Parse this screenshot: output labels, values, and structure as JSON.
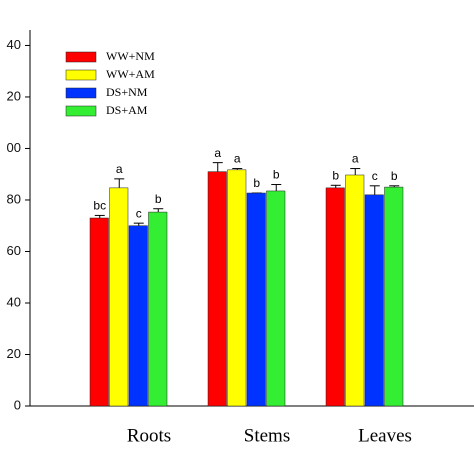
{
  "chart_data": {
    "type": "bar",
    "categories": [
      "Roots",
      "Stems",
      "Leaves"
    ],
    "series": [
      {
        "name": "WW+NM",
        "color": "#ff0000",
        "values": [
          73,
          91,
          84.7
        ],
        "errors": [
          1,
          3.5,
          1
        ],
        "letters": [
          "bc",
          "a",
          "b"
        ]
      },
      {
        "name": "WW+AM",
        "color": "#ffff00",
        "values": [
          84.7,
          91.7,
          89.7
        ],
        "errors": [
          3.5,
          0.5,
          2.5
        ],
        "letters": [
          "a",
          "a",
          "a"
        ]
      },
      {
        "name": "DS+NM",
        "color": "#0033ff",
        "values": [
          70,
          82.7,
          82
        ],
        "errors": [
          1,
          0,
          3.5
        ],
        "letters": [
          "c",
          "b",
          "c"
        ]
      },
      {
        "name": "DS+AM",
        "color": "#33ee33",
        "values": [
          75.3,
          83.5,
          85
        ],
        "errors": [
          1.3,
          2.5,
          0.5
        ],
        "letters": [
          "b",
          "b",
          "b"
        ]
      }
    ],
    "ylim": [
      0,
      146
    ],
    "yticks": [
      0,
      20,
      40,
      60,
      80,
      {
        "value": 100,
        "label": "00"
      },
      {
        "value": 120,
        "label": "20"
      },
      {
        "value": 140,
        "label": "40"
      }
    ]
  }
}
